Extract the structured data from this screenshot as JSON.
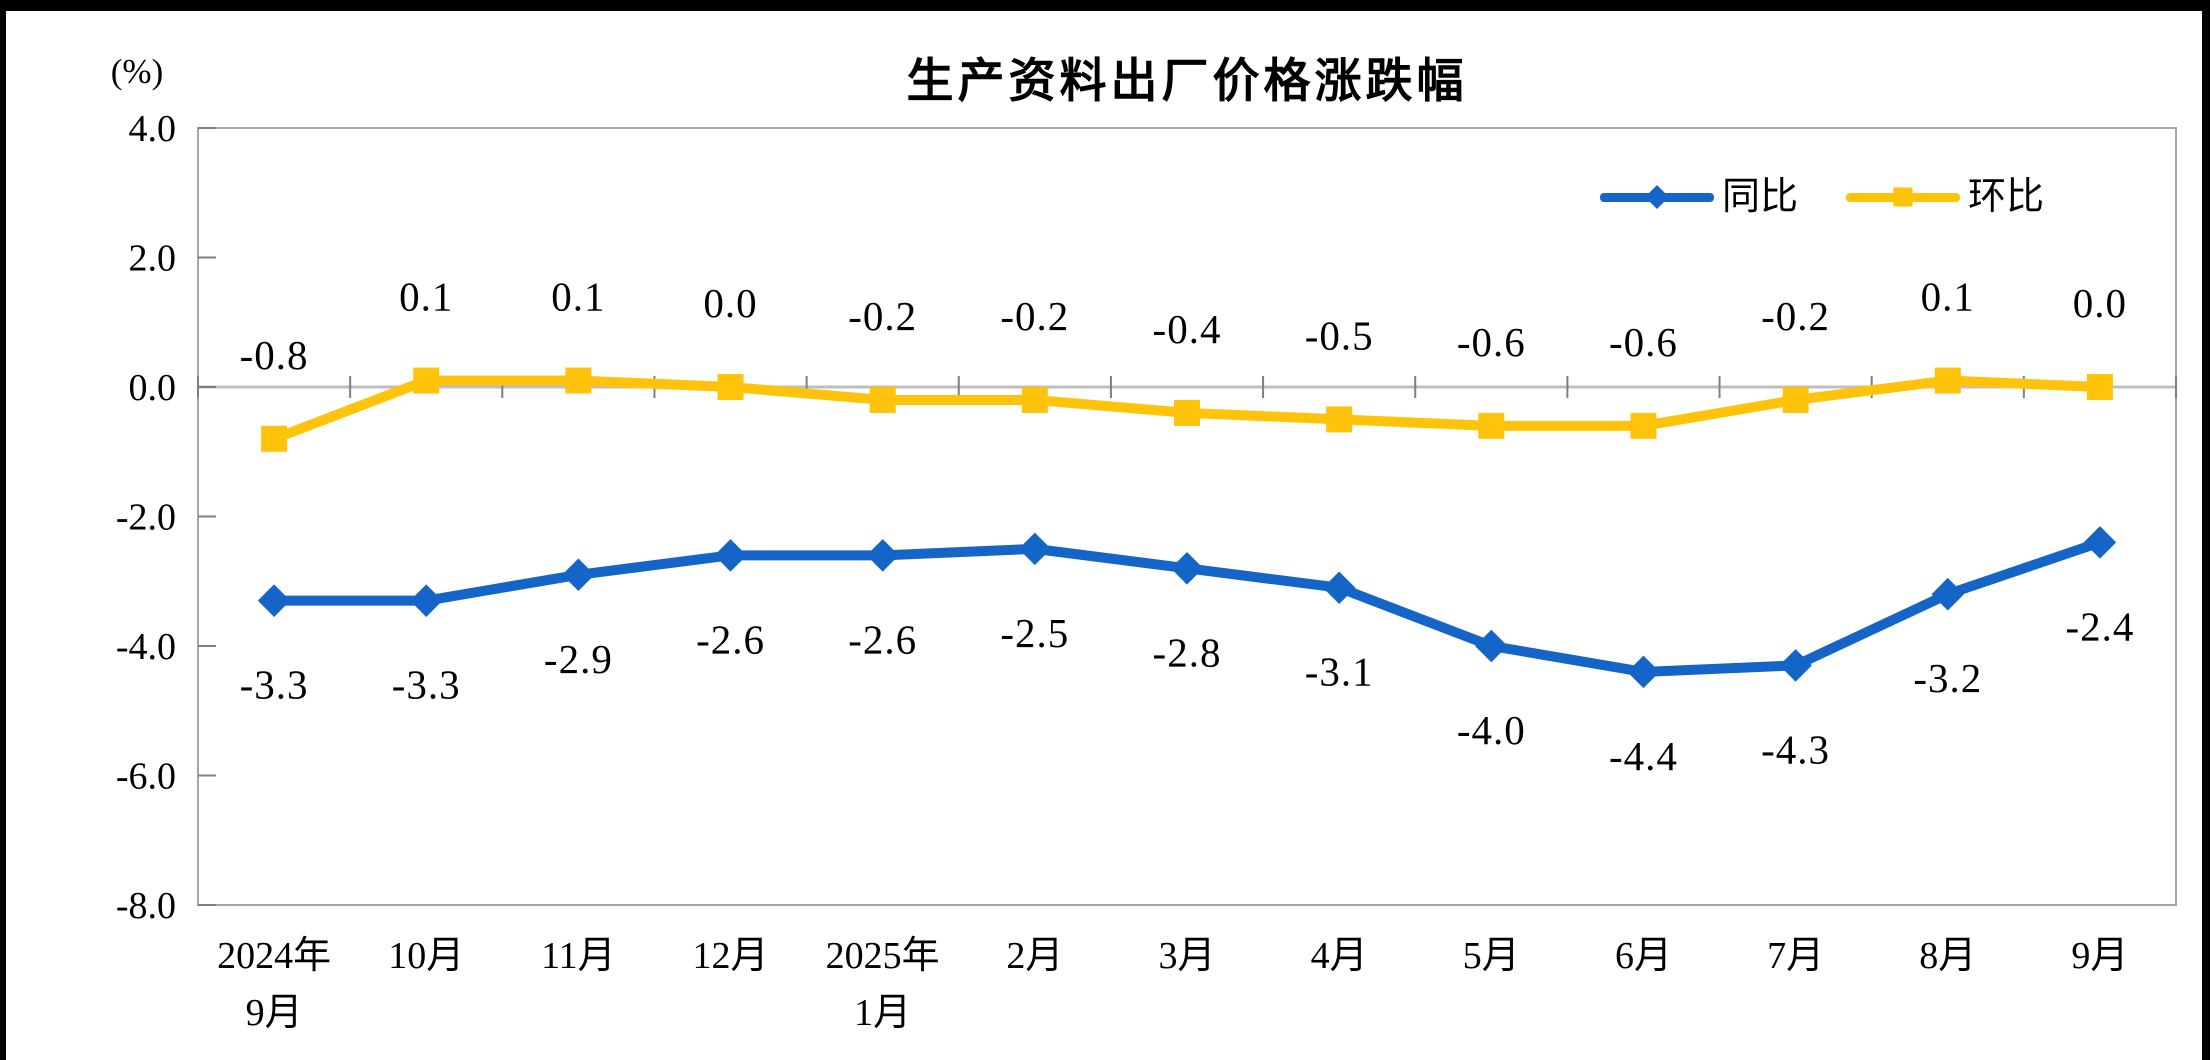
{
  "window": {
    "edge_color": "#000000",
    "background": "#FFFFFF"
  },
  "chart_data": {
    "type": "line",
    "title": "生产资料出厂价格涨跌幅",
    "unit_label": "(%)",
    "categories": [
      [
        "2024年",
        "9月"
      ],
      [
        "10月"
      ],
      [
        "11月"
      ],
      [
        "12月"
      ],
      [
        "2025年",
        "1月"
      ],
      [
        "2月"
      ],
      [
        "3月"
      ],
      [
        "4月"
      ],
      [
        "5月"
      ],
      [
        "6月"
      ],
      [
        "7月"
      ],
      [
        "8月"
      ],
      [
        "9月"
      ]
    ],
    "series": [
      {
        "name": "同比",
        "color": "#1565C8",
        "marker": "diamond",
        "label_position": "below",
        "values": [
          -3.3,
          -3.3,
          -2.9,
          -2.6,
          -2.6,
          -2.5,
          -2.8,
          -3.1,
          -4.0,
          -4.4,
          -4.3,
          -3.2,
          -2.4
        ]
      },
      {
        "name": "环比",
        "color": "#FFC30B",
        "marker": "square",
        "label_position": "above",
        "values": [
          -0.8,
          0.1,
          0.1,
          0.0,
          -0.2,
          -0.2,
          -0.4,
          -0.5,
          -0.6,
          -0.6,
          -0.2,
          0.1,
          0.0
        ]
      }
    ],
    "ylabel": "",
    "xlabel": "",
    "ylim": [
      -8.0,
      4.0
    ],
    "ytick_step": 2.0,
    "yticks": [
      "4.0",
      "2.0",
      "0.0",
      "-2.0",
      "-4.0",
      "-6.0",
      "-8.0"
    ],
    "grid": "zero-line-only",
    "legend_position": "top-right",
    "axis_colors": {
      "plot_border": "#A6A6A6",
      "zero_line": "#BFBFBF",
      "tick": "#7F7F7F"
    }
  }
}
